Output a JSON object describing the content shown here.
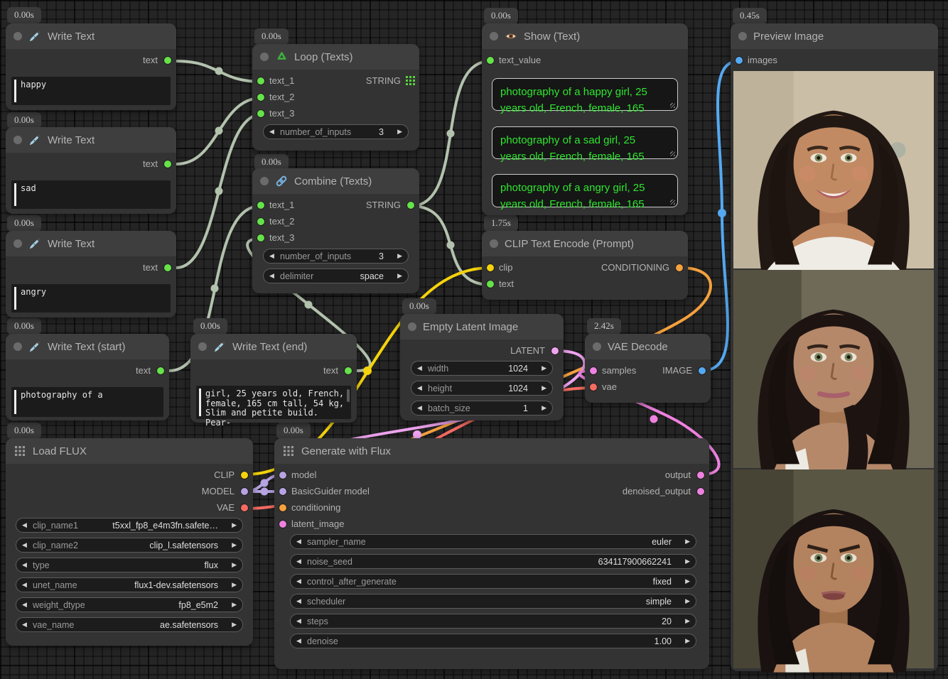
{
  "palette": {
    "wire_string": "#b3c2ad",
    "dot_string": "#66e24a",
    "clip": "#f5d30c",
    "model": "#b6a3e2",
    "vae": "#f56b62",
    "conditioning": "#f5a13d",
    "latent": "#efa3ef",
    "pink": "#ee82e0",
    "image_blue": "#55a9f2",
    "show_text_green": "#2ee62e"
  },
  "nodes": {
    "write_text_1": {
      "badge": "0.00s",
      "title": "Write Text",
      "output_label": "text",
      "text": "happy"
    },
    "write_text_2": {
      "badge": "0.00s",
      "title": "Write Text",
      "output_label": "text",
      "text": "sad"
    },
    "write_text_3": {
      "badge": "0.00s",
      "title": "Write Text",
      "output_label": "text",
      "text": "angry"
    },
    "write_text_start": {
      "badge": "0.00s",
      "title": "Write Text (start)",
      "output_label": "text",
      "text": "photography of a"
    },
    "write_text_end": {
      "badge": "0.00s",
      "title": "Write Text (end)",
      "output_label": "text",
      "text": "girl, 25 years old, French,\nfemale, 165 cm tall, 54 kg,\nSlim and petite build. Pear-"
    },
    "loop": {
      "badge": "0.00s",
      "title": "Loop (Texts)",
      "inputs": [
        "text_1",
        "text_2",
        "text_3"
      ],
      "output_label": "STRING",
      "widgets": [
        {
          "name": "number_of_inputs",
          "value": "3"
        }
      ]
    },
    "combine": {
      "badge": "0.00s",
      "title": "Combine (Texts)",
      "inputs": [
        "text_1",
        "text_2",
        "text_3"
      ],
      "output_label": "STRING",
      "widgets": [
        {
          "name": "number_of_inputs",
          "value": "3"
        },
        {
          "name": "delimiter",
          "value": "space"
        }
      ]
    },
    "show_text": {
      "badge": "0.00s",
      "title": "Show (Text)",
      "input_label": "text_value",
      "texts": [
        "photography of a happy girl, 25\nyears old, French, female, 165",
        "photography of a sad girl, 25\nyears old, French, female, 165",
        "photography of a angry girl, 25\nyears old, French, female, 165"
      ]
    },
    "clip_encode": {
      "badge": "1.75s",
      "title": "CLIP Text Encode (Prompt)",
      "inputs": [
        "clip",
        "text"
      ],
      "output_label": "CONDITIONING"
    },
    "empty_latent": {
      "badge": "0.00s",
      "title": "Empty Latent Image",
      "output_label": "LATENT",
      "widgets": [
        {
          "name": "width",
          "value": "1024"
        },
        {
          "name": "height",
          "value": "1024"
        },
        {
          "name": "batch_size",
          "value": "1"
        }
      ]
    },
    "vae_decode": {
      "badge": "2.42s",
      "title": "VAE Decode",
      "inputs": [
        "samples",
        "vae"
      ],
      "output_label": "IMAGE"
    },
    "load_flux": {
      "badge": "0.00s",
      "title": "Load FLUX",
      "outputs": [
        "CLIP",
        "MODEL",
        "VAE"
      ],
      "widgets": [
        {
          "name": "clip_name1",
          "value": "t5xxl_fp8_e4m3fn.safete…"
        },
        {
          "name": "clip_name2",
          "value": "clip_l.safetensors"
        },
        {
          "name": "type",
          "value": "flux"
        },
        {
          "name": "unet_name",
          "value": "flux1-dev.safetensors"
        },
        {
          "name": "weight_dtype",
          "value": "fp8_e5m2"
        },
        {
          "name": "vae_name",
          "value": "ae.safetensors"
        }
      ]
    },
    "generate": {
      "badge": "0.00s",
      "title": "Generate with Flux",
      "inputs": [
        "model",
        "BasicGuider model",
        "conditioning",
        "latent_image"
      ],
      "outputs": [
        "output",
        "denoised_output"
      ],
      "widgets": [
        {
          "name": "sampler_name",
          "value": "euler"
        },
        {
          "name": "noise_seed",
          "value": "634117900662241"
        },
        {
          "name": "control_after_generate",
          "value": "fixed"
        },
        {
          "name": "scheduler",
          "value": "simple"
        },
        {
          "name": "steps",
          "value": "20"
        },
        {
          "name": "denoise",
          "value": "1.00"
        }
      ]
    },
    "preview": {
      "badge": "0.45s",
      "title": "Preview Image",
      "input_label": "images",
      "images": [
        {
          "alt": "happy girl portrait"
        },
        {
          "alt": "sad girl portrait"
        },
        {
          "alt": "angry girl portrait"
        }
      ]
    }
  }
}
